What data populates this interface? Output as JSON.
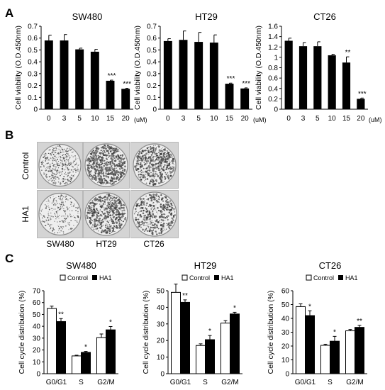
{
  "panel_letters": [
    "A",
    "B",
    "C"
  ],
  "viability_panels": [
    {
      "title": "SW480",
      "ylabel": "Cell viability (O.D.450nm)",
      "x_unit": "(uM)",
      "categories": [
        "0",
        "3",
        "5",
        "10",
        "15",
        "20"
      ],
      "y_ticks": [
        "0",
        "0.1",
        "0.2",
        "0.3",
        "0.4",
        "0.5",
        "0.6",
        "0.7"
      ],
      "sig_labels": [
        "",
        "",
        "",
        "",
        "***",
        "***"
      ]
    },
    {
      "title": "HT29",
      "ylabel": "Cell viability (O.D.450nm)",
      "x_unit": "(uM)",
      "categories": [
        "0",
        "3",
        "5",
        "10",
        "15",
        "20"
      ],
      "y_ticks": [
        "0",
        "0.1",
        "0.2",
        "0.3",
        "0.4",
        "0.5",
        "0.6",
        "0.7"
      ],
      "sig_labels": [
        "",
        "",
        "",
        "",
        "***",
        "***"
      ]
    },
    {
      "title": "CT26",
      "ylabel": "Cell viability (O.D.450nm)",
      "x_unit": "(uM)",
      "categories": [
        "0",
        "3",
        "5",
        "10",
        "15",
        "20"
      ],
      "y_ticks": [
        "0",
        "0.2",
        "0.4",
        "0.6",
        "0.8",
        "1",
        "1.2",
        "1.4",
        "1.6"
      ],
      "sig_labels": [
        "",
        "",
        "",
        "",
        "**",
        "***"
      ]
    }
  ],
  "colony": {
    "row_labels": [
      "Control",
      "HA1"
    ],
    "col_labels": [
      "SW480",
      "HT29",
      "CT26"
    ]
  },
  "cycle_panels": [
    {
      "title": "SW480",
      "ylabel": "Cell cycle distribution (%)",
      "legend": [
        "Control",
        "HA1"
      ],
      "categories": [
        "G0/G1",
        "S",
        "G2/M"
      ],
      "y_ticks": [
        "0",
        "10",
        "20",
        "30",
        "40",
        "50",
        "60",
        "70"
      ],
      "sig_labels": [
        "**",
        "*",
        "*"
      ]
    },
    {
      "title": "HT29",
      "ylabel": "Cell cycle distribution (%)",
      "legend": [
        "Control",
        "HA1"
      ],
      "categories": [
        "G0/G1",
        "S",
        "G2/M"
      ],
      "y_ticks": [
        "0",
        "10",
        "20",
        "30",
        "40",
        "50"
      ],
      "sig_labels": [
        "**",
        "*",
        "*"
      ]
    },
    {
      "title": "CT26",
      "ylabel": "Cell cycle distribution (%)",
      "legend": [
        "Control",
        "HA1"
      ],
      "categories": [
        "G0/G1",
        "S",
        "G2/M"
      ],
      "y_ticks": [
        "0",
        "10",
        "20",
        "30",
        "40",
        "50",
        "60"
      ],
      "sig_labels": [
        "*",
        "*",
        "**"
      ]
    }
  ],
  "chart_data": [
    {
      "type": "bar",
      "title": "SW480",
      "xlabel": "(uM)",
      "ylabel": "Cell viability (O.D.450nm)",
      "categories": [
        "0",
        "3",
        "5",
        "10",
        "15",
        "20"
      ],
      "values": [
        0.58,
        0.58,
        0.505,
        0.485,
        0.24,
        0.172
      ],
      "errors": [
        0.045,
        0.05,
        0.01,
        0.02,
        0.005,
        0.004
      ],
      "ylim": [
        0,
        0.7
      ],
      "grid": false
    },
    {
      "type": "bar",
      "title": "HT29",
      "xlabel": "(uM)",
      "ylabel": "Cell viability (O.D.450nm)",
      "categories": [
        "0",
        "3",
        "5",
        "10",
        "15",
        "20"
      ],
      "values": [
        0.575,
        0.585,
        0.568,
        0.562,
        0.215,
        0.175
      ],
      "errors": [
        0.02,
        0.075,
        0.08,
        0.065,
        0.005,
        0.005
      ],
      "ylim": [
        0,
        0.7
      ],
      "grid": false
    },
    {
      "type": "bar",
      "title": "CT26",
      "xlabel": "(uM)",
      "ylabel": "Cell viability (O.D.450nm)",
      "categories": [
        "0",
        "3",
        "5",
        "10",
        "15",
        "20"
      ],
      "values": [
        1.32,
        1.215,
        1.215,
        1.04,
        0.9,
        0.2
      ],
      "errors": [
        0.05,
        0.07,
        0.085,
        0.02,
        0.11,
        0.015
      ],
      "ylim": [
        0,
        1.6
      ],
      "grid": false
    },
    {
      "type": "bar",
      "title": "SW480",
      "ylabel": "Cell cycle distribution (%)",
      "categories": [
        "G0/G1",
        "S",
        "G2/M"
      ],
      "series": [
        {
          "name": "Control",
          "color": "#ffffff",
          "values": [
            55,
            15,
            30.5
          ],
          "errors": [
            2,
            0.6,
            3
          ]
        },
        {
          "name": "HA1",
          "color": "#000000",
          "values": [
            44,
            18,
            37
          ],
          "errors": [
            2.5,
            0.8,
            2.8
          ]
        }
      ],
      "ylim": [
        0,
        70
      ],
      "legend": "top",
      "grid": false
    },
    {
      "type": "bar",
      "title": "HT29",
      "ylabel": "Cell cycle distribution (%)",
      "categories": [
        "G0/G1",
        "S",
        "G2/M"
      ],
      "series": [
        {
          "name": "Control",
          "color": "#ffffff",
          "values": [
            49,
            17,
            30.5
          ],
          "errors": [
            5,
            1,
            1.5
          ]
        },
        {
          "name": "HA1",
          "color": "#000000",
          "values": [
            43,
            20.5,
            36
          ],
          "errors": [
            1.5,
            2.5,
            1
          ]
        }
      ],
      "ylim": [
        0,
        50
      ],
      "legend": "top",
      "grid": false
    },
    {
      "type": "bar",
      "title": "CT26",
      "ylabel": "Cell cycle distribution (%)",
      "categories": [
        "G0/G1",
        "S",
        "G2/M"
      ],
      "series": [
        {
          "name": "Control",
          "color": "#ffffff",
          "values": [
            48.5,
            20.5,
            31
          ],
          "errors": [
            2,
            0.8,
            1
          ]
        },
        {
          "name": "HA1",
          "color": "#000000",
          "values": [
            42,
            23.5,
            33.5
          ],
          "errors": [
            3.5,
            3.5,
            1.5
          ]
        }
      ],
      "ylim": [
        0,
        60
      ],
      "legend": "top",
      "grid": false
    }
  ],
  "colors": {
    "bar_fill": "#000000",
    "axis": "#000000",
    "text": "#000000"
  }
}
